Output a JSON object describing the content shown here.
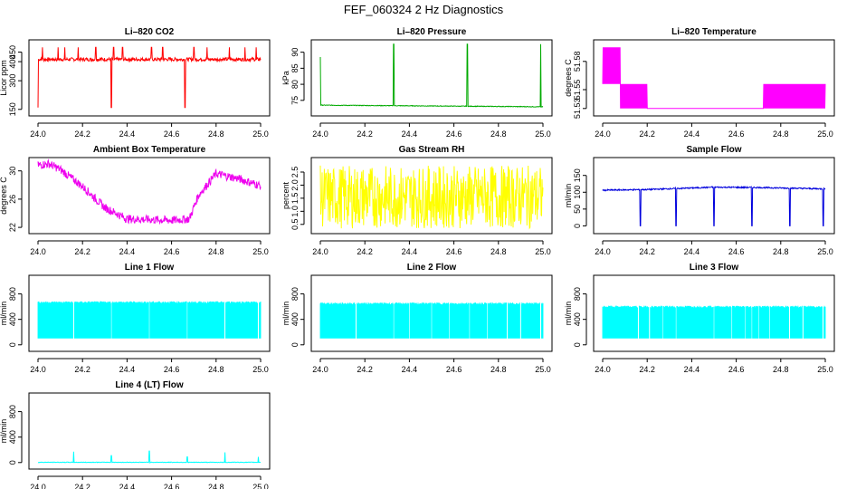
{
  "figure_title": "FEF_060324  2 Hz Diagnostics",
  "chart_data": [
    {
      "id": "co2",
      "type": "line",
      "title": "Li–820 CO2",
      "ylabel": "Licor ppm",
      "color": "#ff0000",
      "xlim": [
        24.0,
        25.0
      ],
      "ylim": [
        130,
        500
      ],
      "xticks": [
        24.0,
        24.2,
        24.4,
        24.6,
        24.8,
        25.0
      ],
      "xtick_labels": [
        "24.0",
        "24.2",
        "24.4",
        "24.6",
        "24.8",
        "25.0"
      ],
      "yticks": [
        150,
        300,
        400,
        450
      ],
      "ytick_labels": [
        "150",
        "300",
        "400",
        "450"
      ],
      "series": [
        {
          "name": "CO2",
          "baseline": 412,
          "noise": 18,
          "spikes_up": [
            24.02,
            24.09,
            24.12,
            24.18,
            24.26,
            24.34,
            24.38,
            24.51,
            24.56,
            24.66,
            24.7,
            24.76,
            24.86,
            24.93,
            24.98
          ],
          "spike_up_to": 475,
          "spikes_down": [
            24.0,
            24.33,
            24.66
          ],
          "spike_down_to": 160
        }
      ]
    },
    {
      "id": "pressure",
      "type": "line",
      "title": "Li–820 Pressure",
      "ylabel": "kPa",
      "color": "#00aa00",
      "xlim": [
        24.0,
        25.0
      ],
      "ylim": [
        71,
        93
      ],
      "xticks": [
        24.0,
        24.2,
        24.4,
        24.6,
        24.8,
        25.0
      ],
      "xtick_labels": [
        "24.0",
        "24.2",
        "24.4",
        "24.6",
        "24.8",
        "25.0"
      ],
      "yticks": [
        75,
        80,
        85,
        90
      ],
      "ytick_labels": [
        "75",
        "80",
        "85",
        "90"
      ],
      "series": [
        {
          "name": "Pressure",
          "start": 73.5,
          "end": 73.0,
          "noise": 0.2,
          "spikes_up": [
            24.0,
            24.33,
            24.66,
            24.99
          ],
          "spike_up_to": [
            88.5,
            92.5,
            92.5,
            92.5
          ]
        }
      ]
    },
    {
      "id": "temperature",
      "type": "line",
      "title": "Li–820 Temperature",
      "ylabel": "degrees C",
      "color": "#ff00ff",
      "xlim": [
        24.0,
        25.0
      ],
      "ylim": [
        51.525,
        51.6
      ],
      "xticks": [
        24.0,
        24.2,
        24.4,
        24.6,
        24.8,
        25.0
      ],
      "xtick_labels": [
        "24.0",
        "24.2",
        "24.4",
        "24.6",
        "24.8",
        "25.0"
      ],
      "yticks": [
        51.53,
        51.55,
        51.58
      ],
      "ytick_labels": [
        "51.53",
        "51.55",
        "51.58"
      ],
      "series": [
        {
          "name": "Temperature",
          "levels": [
            51.53,
            51.556,
            51.595
          ]
        }
      ]
    },
    {
      "id": "ambient",
      "type": "line",
      "title": "Ambient Box Temperature",
      "ylabel": "degrees C",
      "color": "#ee00ee",
      "xlim": [
        24.0,
        25.0
      ],
      "ylim": [
        21.5,
        31.5
      ],
      "xticks": [
        24.0,
        24.2,
        24.4,
        24.6,
        24.8,
        25.0
      ],
      "xtick_labels": [
        "24.0",
        "24.2",
        "24.4",
        "24.6",
        "24.8",
        "25.0"
      ],
      "yticks": [
        22,
        26,
        30
      ],
      "ytick_labels": [
        "22",
        "26",
        "30"
      ],
      "series": [
        {
          "name": "Ambient",
          "points": [
            [
              24.0,
              30.8
            ],
            [
              24.05,
              31.0
            ],
            [
              24.1,
              30.2
            ],
            [
              24.2,
              27.8
            ],
            [
              24.3,
              24.8
            ],
            [
              24.4,
              23.2
            ],
            [
              24.5,
              23.1
            ],
            [
              24.6,
              23.0
            ],
            [
              24.68,
              23.2
            ],
            [
              24.72,
              26.5
            ],
            [
              24.8,
              29.6
            ],
            [
              24.9,
              28.9
            ],
            [
              25.0,
              27.9
            ]
          ]
        }
      ]
    },
    {
      "id": "rh",
      "type": "line",
      "title": "Gas Stream RH",
      "ylabel": "percent",
      "color": "#ffff00",
      "xlim": [
        24.0,
        25.0
      ],
      "ylim": [
        0.25,
        2.95
      ],
      "xticks": [
        24.0,
        24.2,
        24.4,
        24.6,
        24.8,
        25.0
      ],
      "xtick_labels": [
        "24.0",
        "24.2",
        "24.4",
        "24.6",
        "24.8",
        "25.0"
      ],
      "yticks": [
        0.5,
        1.0,
        1.5,
        2.0,
        2.5
      ],
      "ytick_labels": [
        "0.5",
        "1.0",
        "1.5",
        "2.0",
        "2.5"
      ],
      "series": [
        {
          "name": "RH",
          "range": [
            0.35,
            2.75
          ]
        }
      ]
    },
    {
      "id": "sample",
      "type": "line",
      "title": "Sample Flow",
      "ylabel": "ml/min",
      "color": "#0000dd",
      "xlim": [
        24.0,
        25.0
      ],
      "ylim": [
        -15,
        195
      ],
      "xticks": [
        24.0,
        24.2,
        24.4,
        24.6,
        24.8,
        25.0
      ],
      "xtick_labels": [
        "24.0",
        "24.2",
        "24.4",
        "24.6",
        "24.8",
        "25.0"
      ],
      "yticks": [
        0,
        50,
        100,
        150
      ],
      "ytick_labels": [
        "0",
        "50",
        "100",
        "150"
      ],
      "series": [
        {
          "name": "Sample",
          "points": [
            [
              24.0,
              106
            ],
            [
              24.2,
              108
            ],
            [
              24.5,
              115
            ],
            [
              24.7,
              114
            ],
            [
              25.0,
              110
            ]
          ],
          "dips": [
            24.17,
            24.33,
            24.5,
            24.67,
            24.84,
            24.99
          ]
        }
      ]
    },
    {
      "id": "line1",
      "type": "line",
      "title": "Line 1 Flow",
      "ylabel": "ml/min",
      "color": "#00ffff",
      "xlim": [
        24.0,
        25.0
      ],
      "ylim": [
        -60,
        1050
      ],
      "xticks": [
        24.0,
        24.2,
        24.4,
        24.6,
        24.8,
        25.0
      ],
      "xtick_labels": [
        "24.0",
        "24.2",
        "24.4",
        "24.6",
        "24.8",
        "25.0"
      ],
      "yticks": [
        0,
        400,
        800
      ],
      "ytick_labels": [
        "0",
        "400",
        "800"
      ],
      "series": [
        {
          "name": "Line 1",
          "low": 100,
          "high": 670,
          "gaps": [
            24.16,
            24.33,
            24.5,
            24.67,
            24.84,
            24.99
          ]
        }
      ]
    },
    {
      "id": "line2",
      "type": "line",
      "title": "Line 2 Flow",
      "ylabel": "ml/min",
      "color": "#00ffff",
      "xlim": [
        24.0,
        25.0
      ],
      "ylim": [
        -60,
        1050
      ],
      "xticks": [
        24.0,
        24.2,
        24.4,
        24.6,
        24.8,
        25.0
      ],
      "xtick_labels": [
        "24.0",
        "24.2",
        "24.4",
        "24.6",
        "24.8",
        "25.0"
      ],
      "yticks": [
        0,
        400,
        800
      ],
      "ytick_labels": [
        "0",
        "400",
        "800"
      ],
      "series": [
        {
          "name": "Line 2",
          "low": 100,
          "high": 650,
          "gaps": [
            24.16,
            24.33,
            24.4,
            24.5,
            24.58,
            24.67,
            24.75,
            24.84,
            24.9,
            24.99
          ]
        }
      ]
    },
    {
      "id": "line3",
      "type": "line",
      "title": "Line 3 Flow",
      "ylabel": "ml/min",
      "color": "#00ffff",
      "xlim": [
        24.0,
        25.0
      ],
      "ylim": [
        -60,
        1050
      ],
      "xticks": [
        24.0,
        24.2,
        24.4,
        24.6,
        24.8,
        25.0
      ],
      "xtick_labels": [
        "24.0",
        "24.2",
        "24.4",
        "24.6",
        "24.8",
        "25.0"
      ],
      "yticks": [
        0,
        400,
        800
      ],
      "ytick_labels": [
        "0",
        "400",
        "800"
      ],
      "series": [
        {
          "name": "Line 3",
          "low": 100,
          "high": 600,
          "gaps": [
            24.16,
            24.21,
            24.27,
            24.33,
            24.5,
            24.58,
            24.64,
            24.67,
            24.7,
            24.75,
            24.84,
            24.9,
            24.99
          ]
        }
      ]
    },
    {
      "id": "line4",
      "type": "line",
      "title": "Line 4 (LT) Flow",
      "ylabel": "ml/min",
      "color": "#00ffff",
      "xlim": [
        24.0,
        25.0
      ],
      "ylim": [
        -60,
        1050
      ],
      "xticks": [
        24.0,
        24.2,
        24.4,
        24.6,
        24.8,
        25.0
      ],
      "xtick_labels": [
        "24.0",
        "24.2",
        "24.4",
        "24.6",
        "24.8",
        "25.0"
      ],
      "yticks": [
        0,
        400,
        800
      ],
      "ytick_labels": [
        "0",
        "400",
        "800"
      ],
      "series": [
        {
          "name": "Line 4",
          "baseline": 0,
          "spikes": [
            24.16,
            24.33,
            24.5,
            24.67,
            24.84,
            24.99
          ],
          "spike_to": [
            170,
            110,
            180,
            90,
            160,
            90
          ]
        }
      ]
    }
  ]
}
